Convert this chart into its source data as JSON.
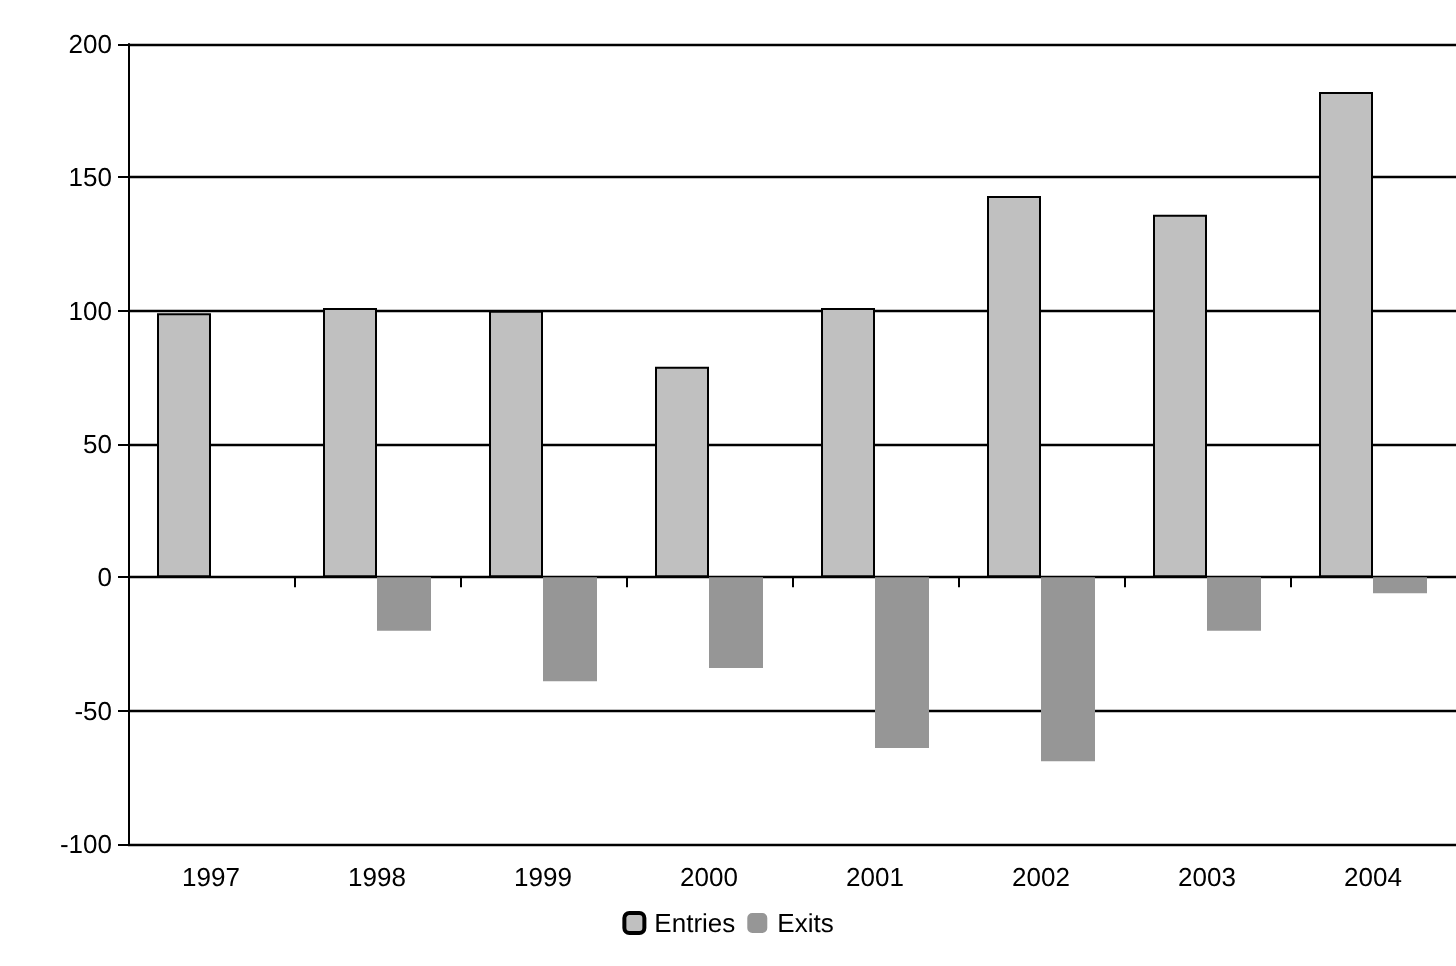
{
  "chart_data": {
    "type": "bar",
    "categories": [
      "1997",
      "1998",
      "1999",
      "2000",
      "2001",
      "2002",
      "2003",
      "2004"
    ],
    "series": [
      {
        "name": "Entries",
        "color": "#c0c0c0",
        "values": [
          99,
          101,
          100,
          79,
          101,
          143,
          136,
          182
        ]
      },
      {
        "name": "Exits",
        "color": "#969696",
        "values": [
          0,
          -20,
          -39,
          -34,
          -64,
          -69,
          -20,
          -6
        ]
      }
    ],
    "ylim": [
      -100,
      200
    ],
    "yticks": [
      -100,
      -50,
      0,
      50,
      100,
      150,
      200
    ],
    "grid": "y",
    "legend": "bottom"
  }
}
